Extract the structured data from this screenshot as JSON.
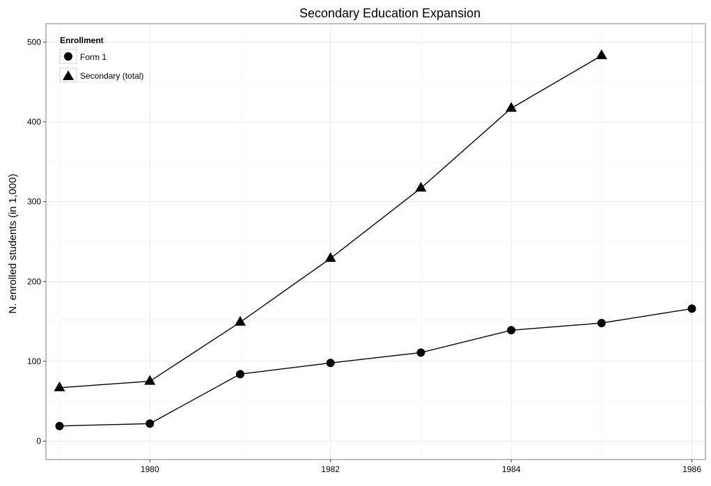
{
  "chart_data": {
    "type": "line",
    "title": "Secondary Education Expansion",
    "xlabel": "",
    "ylabel": "N. enrolled students (in 1,000)",
    "xlim": [
      1978.85,
      1986.15
    ],
    "ylim": [
      -23,
      523
    ],
    "x_ticks": [
      1980,
      1982,
      1984,
      1986
    ],
    "y_ticks": [
      0,
      100,
      200,
      300,
      400,
      500
    ],
    "grid": true,
    "legend": {
      "title": "Enrollment",
      "placement": "top-left"
    },
    "series": [
      {
        "name": "Form 1",
        "marker": "circle",
        "x": [
          1979,
          1980,
          1981,
          1982,
          1983,
          1984,
          1985,
          1986
        ],
        "y": [
          19,
          22,
          84,
          98,
          111,
          139,
          148,
          166
        ]
      },
      {
        "name": "Secondary (total)",
        "marker": "triangle",
        "x": [
          1979,
          1980,
          1981,
          1982,
          1983,
          1984,
          1985
        ],
        "y": [
          67,
          75,
          149,
          229,
          317,
          417,
          483
        ]
      }
    ]
  }
}
